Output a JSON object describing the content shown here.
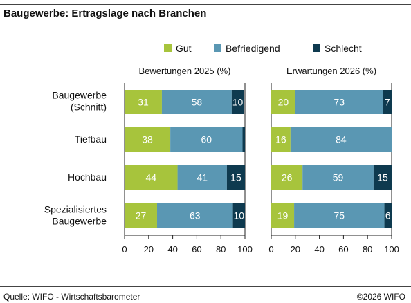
{
  "title": "Baugewerbe: Ertragslage nach Branchen",
  "footer": {
    "source": "Quelle: WIFO - Wirtschaftsbarometer",
    "copyright": "©2026 WIFO"
  },
  "colors": {
    "gut": "#a7c43c",
    "befriedigend": "#5a97b3",
    "schlecht": "#0e3a4f",
    "value_text": "#ffffff"
  },
  "chart_data": {
    "type": "bar",
    "orientation": "horizontal",
    "stacked": true,
    "legend": [
      "Gut",
      "Befriedigend",
      "Schlecht"
    ],
    "legend_placement": "top",
    "categories": [
      [
        "Baugewerbe",
        "(Schnitt)"
      ],
      [
        "Tiefbau"
      ],
      [
        "Hochbau"
      ],
      [
        "Spezialisiertes",
        "Baugewerbe"
      ]
    ],
    "xlim": [
      0,
      100
    ],
    "ticks": [
      0,
      20,
      40,
      60,
      80,
      100
    ],
    "grid": false,
    "panels": [
      {
        "title": "Bewertungen 2025 (%)",
        "series": [
          {
            "name": "Gut",
            "values": [
              31,
              38,
              44,
              27
            ]
          },
          {
            "name": "Befriedigend",
            "values": [
              58,
              60,
              41,
              63
            ]
          },
          {
            "name": "Schlecht",
            "values": [
              10,
              2,
              15,
              10
            ]
          }
        ],
        "labels": [
          [
            "31",
            "58",
            "10"
          ],
          [
            "38",
            "60",
            ""
          ],
          [
            "44",
            "41",
            "15"
          ],
          [
            "27",
            "63",
            "10"
          ]
        ]
      },
      {
        "title": "Erwartungen 2026 (%)",
        "series": [
          {
            "name": "Gut",
            "values": [
              20,
              16,
              26,
              19
            ]
          },
          {
            "name": "Befriedigend",
            "values": [
              73,
              84,
              59,
              75
            ]
          },
          {
            "name": "Schlecht",
            "values": [
              7,
              0,
              15,
              6
            ]
          }
        ],
        "labels": [
          [
            "20",
            "73",
            "7"
          ],
          [
            "16",
            "84",
            ""
          ],
          [
            "26",
            "59",
            "15"
          ],
          [
            "19",
            "75",
            "6"
          ]
        ]
      }
    ]
  }
}
